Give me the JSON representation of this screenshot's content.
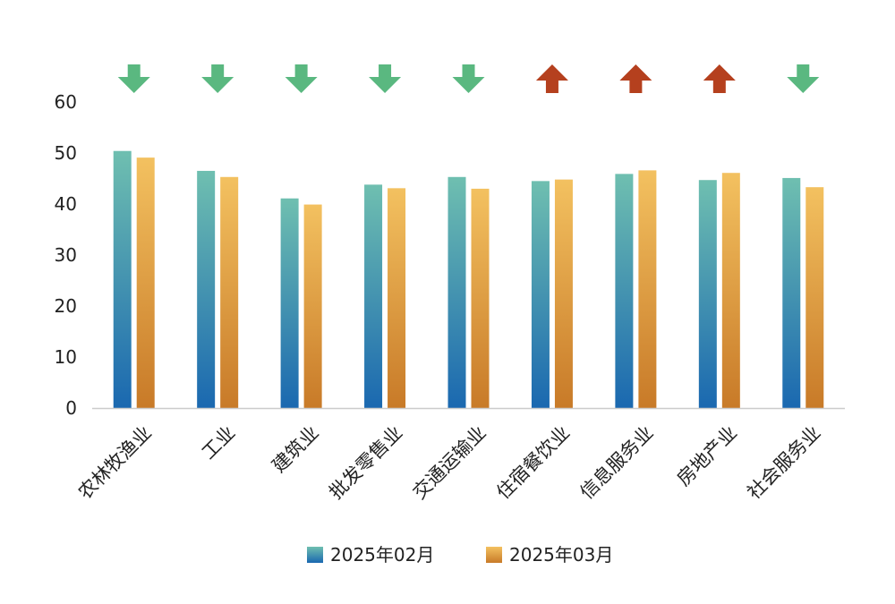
{
  "chart_data": {
    "type": "bar",
    "title": "",
    "xlabel": "",
    "ylabel": "",
    "ylim": [
      0,
      60
    ],
    "y_ticks": [
      0,
      10,
      20,
      30,
      40,
      50,
      60
    ],
    "grid": false,
    "legend_position": "bottom",
    "categories": [
      "农林牧渔业",
      "工业",
      "建筑业",
      "批发零售业",
      "交通运输业",
      "住宿餐饮业",
      "信息服务业",
      "房地产业",
      "社会服务业"
    ],
    "series": [
      {
        "name": "2025年02月",
        "values": [
          50.4,
          46.5,
          41.1,
          43.8,
          45.3,
          44.5,
          45.9,
          44.7,
          45.1
        ],
        "color_top": "#6fbfb0",
        "color_bottom": "#1a68b0"
      },
      {
        "name": "2025年03月",
        "values": [
          49.1,
          45.3,
          39.9,
          43.1,
          43.0,
          44.8,
          46.6,
          46.1,
          43.3
        ],
        "color_top": "#f3c160",
        "color_bottom": "#c87a28"
      }
    ],
    "trend_indicators": [
      "down",
      "down",
      "down",
      "down",
      "down",
      "up",
      "up",
      "up",
      "down"
    ],
    "indicator_colors": {
      "down": "#5ab880",
      "up": "#b5401e"
    }
  }
}
